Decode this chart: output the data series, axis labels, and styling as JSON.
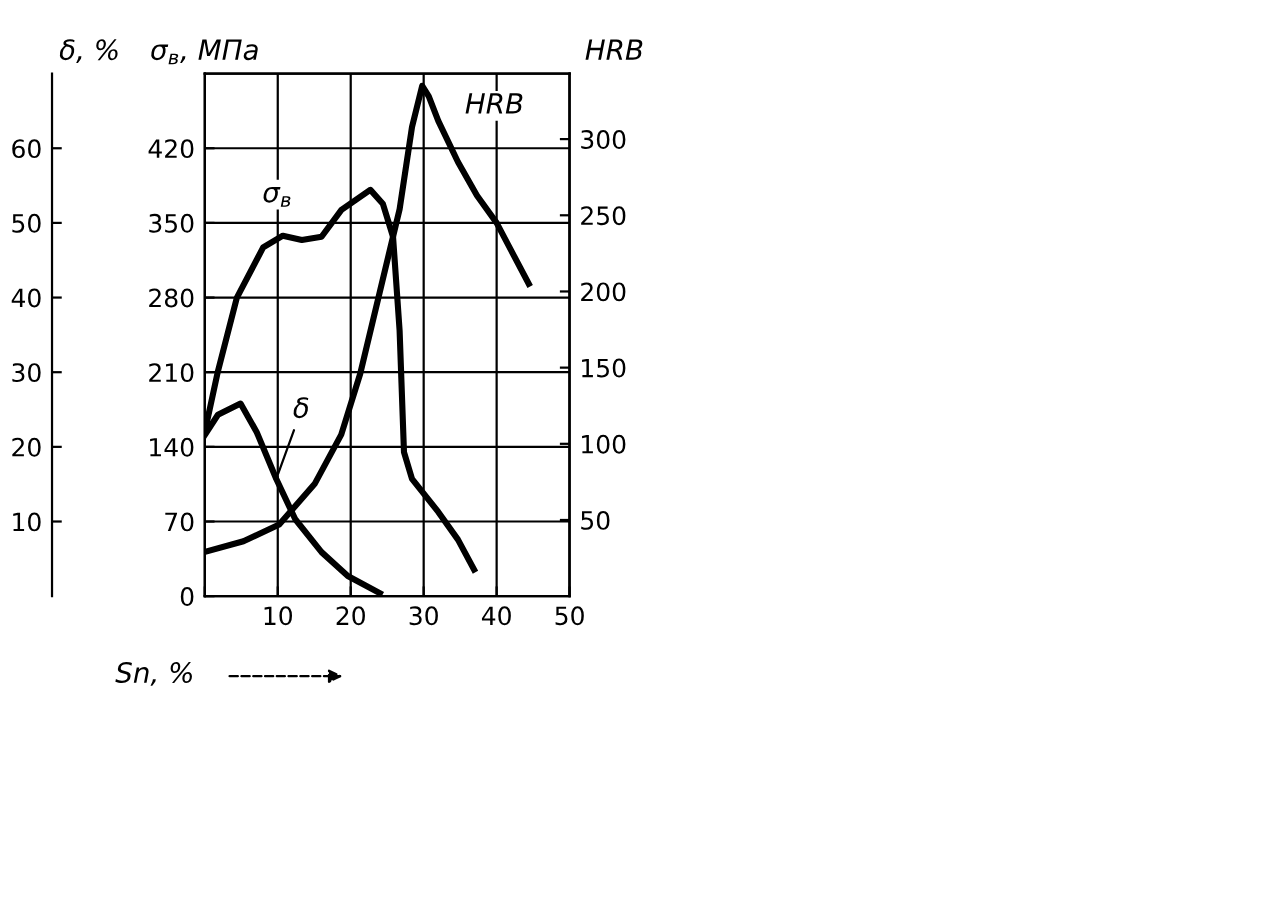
{
  "chart_data": {
    "type": "line",
    "xlabel": "Sn, %",
    "ylabel": "σ$_{в}$, МПа",
    "y2label": "HRB",
    "y3label": "δ, %",
    "xlim": [
      0,
      50
    ],
    "xticks": [
      {
        "value": 0,
        "label": null
      },
      10,
      20,
      30,
      40,
      50
    ],
    "ylim": [
      0,
      490
    ],
    "yticks": [
      0,
      70,
      140,
      210,
      280,
      350,
      420
    ],
    "y2lim": [
      0,
      343
    ],
    "y2ticks": [
      50,
      100,
      150,
      200,
      250,
      300
    ],
    "y3lim": [
      0,
      70
    ],
    "y3ticks": [
      10,
      20,
      30,
      40,
      50,
      60
    ],
    "grid": true,
    "legend": false,
    "marker": "none",
    "line_style": "solid",
    "series": [
      {
        "name": "σ$_{в}$",
        "color": "#000000",
        "x": [
          0,
          1.8,
          4.4,
          8,
          10.7,
          13.3,
          16,
          18.7,
          22.7,
          24.4,
          25.8,
          26.7,
          27.3,
          28.4,
          32,
          34.7,
          36.9
        ],
        "values": [
          154,
          211,
          280,
          327,
          338,
          334,
          337,
          362,
          381,
          368,
          337,
          249,
          135,
          110,
          79,
          53,
          25
        ]
      },
      {
        "name": "HRB",
        "color": "#000000",
        "axis": "y2",
        "x": [
          0,
          5.3,
          10.2,
          15.1,
          18.7,
          21.3,
          24,
          26.7,
          28.4,
          29.8,
          30.7,
          32,
          34.7,
          37.3,
          40,
          44.4
        ],
        "values": [
          29,
          36,
          47,
          74,
          106,
          146,
          200,
          254,
          308,
          335,
          328,
          312,
          285,
          263,
          245,
          205
        ]
      },
      {
        "name": "δ",
        "color": "#000000",
        "axis": "y3",
        "x": [
          0,
          1.8,
          4.9,
          7.1,
          9.8,
          12.4,
          16,
          19.6,
          24
        ],
        "values": [
          21.6,
          24.3,
          25.8,
          22,
          15.7,
          10.3,
          5.9,
          2.7,
          0.4
        ]
      }
    ]
  }
}
